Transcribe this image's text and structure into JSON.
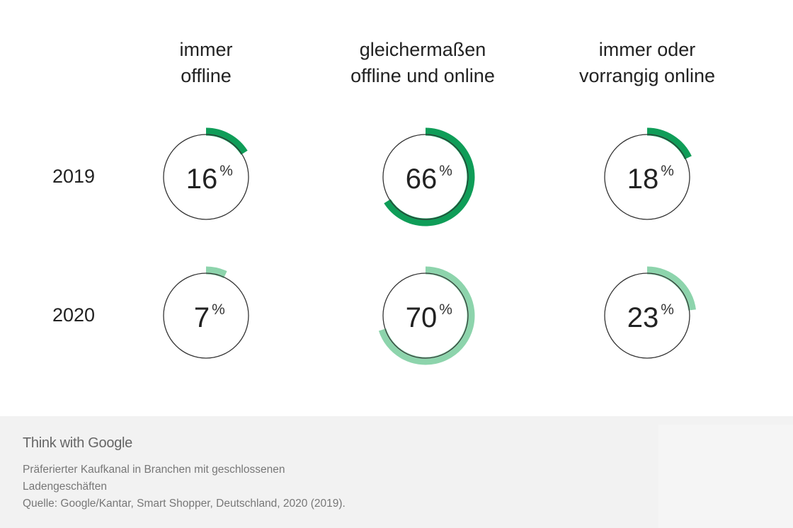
{
  "chart_data": {
    "type": "pie",
    "columns": [
      "immer offline",
      "gleichermaßen offline und online",
      "immer oder vorrangig online"
    ],
    "column_labels": [
      [
        "immer",
        "offline"
      ],
      [
        "gleichermaßen",
        "offline und online"
      ],
      [
        "immer oder",
        "vorrangig online"
      ]
    ],
    "rows": [
      "2019",
      "2020"
    ],
    "series": [
      {
        "year": "2019",
        "values": [
          16,
          66,
          18
        ],
        "color": "#0f9d58"
      },
      {
        "year": "2020",
        "values": [
          7,
          70,
          23
        ],
        "color": "#8dd4ac"
      }
    ],
    "unit": "%"
  },
  "footer": {
    "brand": "Think with Google",
    "caption_line1": "Präferierter Kaufkanal in Branchen mit geschlossenen",
    "caption_line2": "Ladengeschäften",
    "source": "Quelle: Google/Kantar, Smart Shopper, Deutschland, 2020 (2019)."
  }
}
